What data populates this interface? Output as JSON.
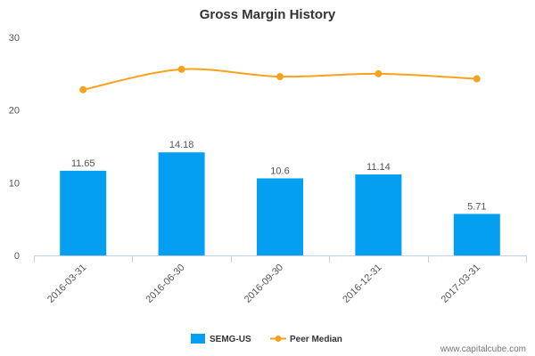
{
  "chart_data": {
    "type": "bar",
    "title": "Gross Margin History",
    "categories": [
      "2016-03-31",
      "2016-06-30",
      "2016-09-30",
      "2016-12-31",
      "2017-03-31"
    ],
    "series": [
      {
        "name": "SEMG-US",
        "kind": "bar",
        "color": "#049ff1",
        "values": [
          11.65,
          14.18,
          10.6,
          11.14,
          5.71
        ],
        "labels": [
          "11.65",
          "14.18",
          "10.6",
          "11.14",
          "5.71"
        ]
      },
      {
        "name": "Peer Median",
        "kind": "line",
        "color": "#f7a21c",
        "values": [
          22.8,
          25.6,
          24.6,
          25.0,
          24.3
        ]
      }
    ],
    "yticks": [
      "0",
      "10",
      "20",
      "30"
    ],
    "ytick_values": [
      0,
      10,
      20,
      30
    ],
    "ylim": [
      0,
      30
    ],
    "grid": false,
    "legend_position": "bottom-center"
  },
  "watermark": "www.capitalcube.com"
}
